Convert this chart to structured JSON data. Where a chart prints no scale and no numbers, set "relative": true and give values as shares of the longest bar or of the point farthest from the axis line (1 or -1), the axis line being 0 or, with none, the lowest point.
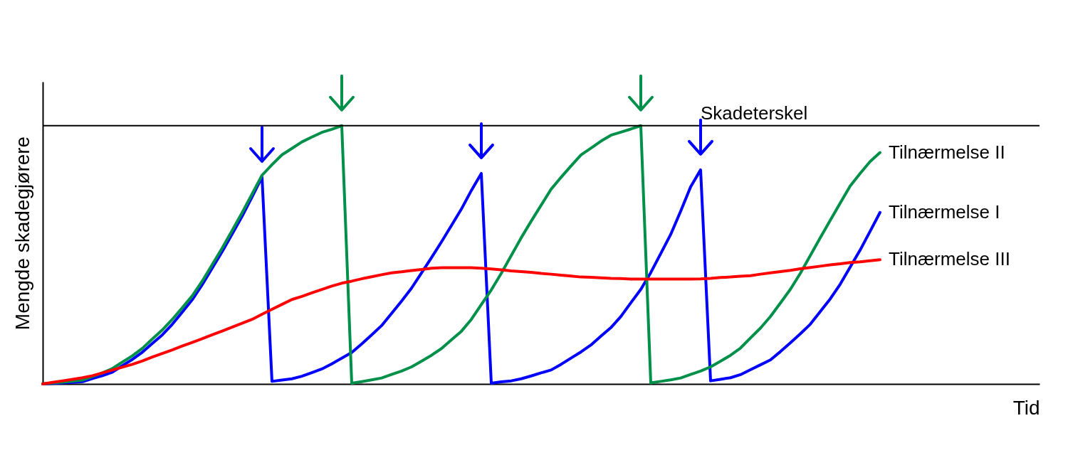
{
  "chart_data": {
    "type": "line",
    "relative": true,
    "xlabel": "Tid",
    "ylabel": "Mengde skadegjørere",
    "line_style": "solid",
    "categories": [
      null,
      null,
      null,
      null,
      null,
      null,
      null,
      null,
      null,
      null,
      null,
      null,
      null,
      null,
      null,
      null,
      null,
      null,
      null,
      null,
      null,
      null,
      null,
      null,
      null,
      null,
      null,
      null,
      null,
      null,
      null,
      null,
      null,
      null,
      null,
      null,
      null,
      null,
      null,
      null,
      null,
      null,
      null,
      null,
      null,
      null,
      null,
      null,
      null,
      null,
      null,
      null,
      null,
      null,
      null,
      null,
      null,
      null,
      null,
      null,
      null,
      null,
      null,
      null,
      null,
      null,
      null,
      null,
      null,
      null,
      null,
      null,
      null,
      null,
      null,
      null,
      null,
      null,
      null,
      null,
      null,
      null,
      null,
      null,
      null,
      null,
      null,
      null,
      null,
      null,
      null,
      null,
      null,
      null,
      null,
      null,
      null,
      null,
      null,
      null,
      null
    ],
    "series": [
      {
        "name": "Tilnærmelse I",
        "color": "#0000ff",
        "values": [
          0,
          0.002,
          0.004,
          0.006,
          0.009,
          0.021,
          0.032,
          0.046,
          0.071,
          0.095,
          0.123,
          0.157,
          0.19,
          0.231,
          0.278,
          0.326,
          0.384,
          0.448,
          0.512,
          0.58,
          0.649,
          0.724,
          0.801,
          0.01,
          0.015,
          0.02,
          0.03,
          0.044,
          0.058,
          0.078,
          0.1,
          0.122,
          0.155,
          0.19,
          0.226,
          0.273,
          0.321,
          0.371,
          0.43,
          0.489,
          0.55,
          0.613,
          0.677,
          0.749,
          0.815,
          0.003,
          0.008,
          0.012,
          0.02,
          0.031,
          0.043,
          0.054,
          0.076,
          0.1,
          0.124,
          0.151,
          0.185,
          0.218,
          0.261,
          0.314,
          0.366,
          0.431,
          0.505,
          0.579,
          0.669,
          0.763,
          0.829,
          0.012,
          0.018,
          0.024,
          0.036,
          0.055,
          0.074,
          0.093,
          0.125,
          0.159,
          0.194,
          0.231,
          0.28,
          0.329,
          0.386,
          0.452,
          0.518,
          0.591,
          0.664,
          null,
          null,
          null,
          null,
          null,
          null,
          null,
          null,
          null,
          null,
          null,
          null,
          null,
          null,
          null,
          null
        ]
      },
      {
        "name": "Tilnærmelse II",
        "color": "#00904a",
        "values": [
          0,
          0.004,
          0.007,
          0.011,
          0.015,
          0.029,
          0.043,
          0.06,
          0.085,
          0.109,
          0.138,
          0.174,
          0.209,
          0.25,
          0.295,
          0.341,
          0.398,
          0.462,
          0.526,
          0.594,
          0.663,
          0.735,
          0.808,
          0.849,
          0.887,
          0.912,
          0.937,
          0.956,
          0.974,
          0.986,
          1,
          0.003,
          0.009,
          0.016,
          0.023,
          0.037,
          0.05,
          0.066,
          0.088,
          0.111,
          0.137,
          0.171,
          0.204,
          0.25,
          0.307,
          0.364,
          0.428,
          0.497,
          0.566,
          0.63,
          0.692,
          0.754,
          0.8,
          0.844,
          0.887,
          0.913,
          0.94,
          0.963,
          0.975,
          0.987,
          1,
          0.004,
          0.01,
          0.016,
          0.023,
          0.037,
          0.05,
          0.066,
          0.088,
          0.111,
          0.139,
          0.178,
          0.216,
          0.261,
          0.313,
          0.366,
          0.428,
          0.497,
          0.566,
          0.633,
          0.7,
          0.766,
          0.815,
          0.861,
          0.896,
          null,
          null,
          null,
          null,
          null,
          null,
          null,
          null,
          null,
          null,
          null,
          null,
          null,
          null,
          null,
          null
        ]
      },
      {
        "name": "Tilnærmelse III",
        "color": "#ff0000",
        "values": [
          0,
          0.006,
          0.012,
          0.018,
          0.024,
          0.032,
          0.043,
          0.054,
          0.065,
          0.076,
          0.089,
          0.104,
          0.118,
          0.132,
          0.147,
          0.161,
          0.175,
          0.19,
          0.205,
          0.22,
          0.235,
          0.25,
          0.27,
          0.289,
          0.308,
          0.327,
          0.339,
          0.353,
          0.366,
          0.379,
          0.39,
          0.398,
          0.407,
          0.415,
          0.423,
          0.43,
          0.434,
          0.439,
          0.443,
          0.448,
          0.45,
          0.45,
          0.45,
          0.45,
          0.448,
          0.445,
          0.442,
          0.438,
          0.435,
          0.432,
          0.428,
          0.425,
          0.421,
          0.418,
          0.414,
          0.413,
          0.411,
          0.409,
          0.408,
          0.406,
          0.406,
          0.406,
          0.406,
          0.406,
          0.406,
          0.406,
          0.407,
          0.409,
          0.412,
          0.414,
          0.417,
          0.419,
          0.425,
          0.43,
          0.435,
          0.44,
          0.446,
          0.451,
          0.456,
          0.461,
          0.465,
          0.47,
          0.473,
          0.477,
          0.481,
          null,
          null,
          null,
          null,
          null,
          null,
          null,
          null,
          null,
          null,
          null,
          null,
          null,
          null,
          null,
          null
        ]
      }
    ],
    "ref_lines": [
      {
        "axis": "y",
        "value": 1,
        "label": "Skadeterskel",
        "color": "#000000"
      }
    ]
  }
}
